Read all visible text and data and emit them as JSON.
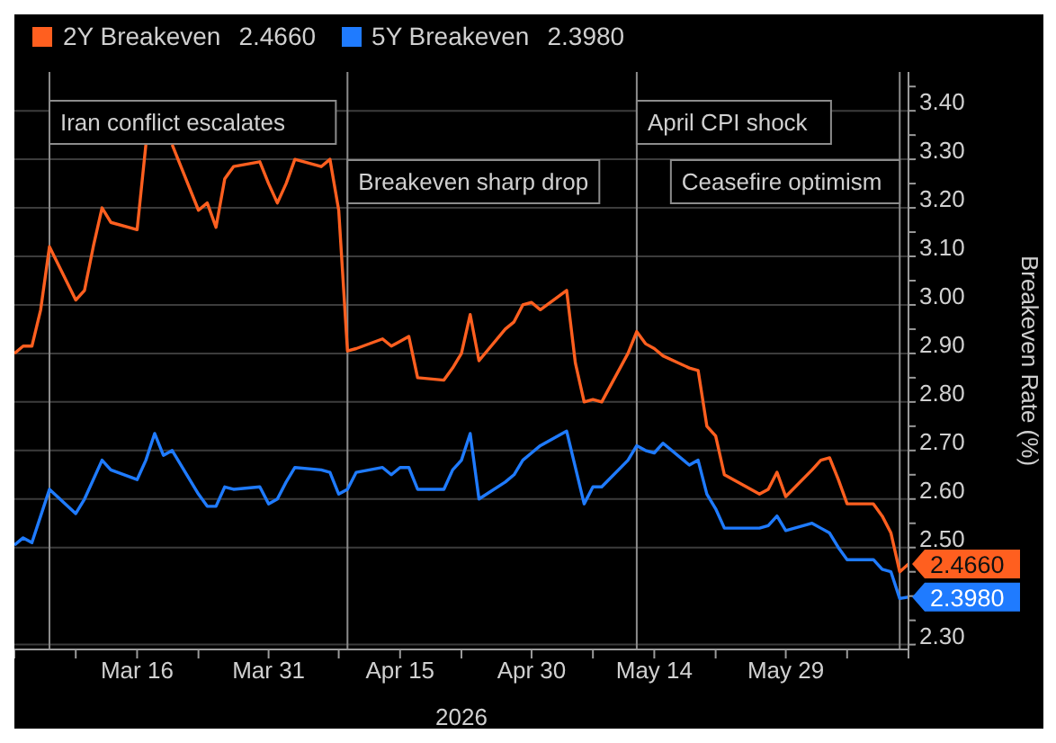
{
  "chart_data": {
    "type": "line",
    "ylabel": "Breakeven Rate (%)",
    "xlabel": "2026",
    "legend": "top left",
    "grid": "y",
    "x": [
      "2026-03-02",
      "2026-03-03",
      "2026-03-04",
      "2026-03-05",
      "2026-03-06",
      "2026-03-09",
      "2026-03-10",
      "2026-03-11",
      "2026-03-12",
      "2026-03-13",
      "2026-03-16",
      "2026-03-17",
      "2026-03-18",
      "2026-03-19",
      "2026-03-20",
      "2026-03-23",
      "2026-03-24",
      "2026-03-25",
      "2026-03-26",
      "2026-03-27",
      "2026-03-30",
      "2026-03-31",
      "2026-04-01",
      "2026-04-02",
      "2026-04-03",
      "2026-04-06",
      "2026-04-07",
      "2026-04-08",
      "2026-04-09",
      "2026-04-10",
      "2026-04-13",
      "2026-04-14",
      "2026-04-15",
      "2026-04-16",
      "2026-04-17",
      "2026-04-20",
      "2026-04-21",
      "2026-04-22",
      "2026-04-23",
      "2026-04-24",
      "2026-04-27",
      "2026-04-28",
      "2026-04-29",
      "2026-04-30",
      "2026-05-01",
      "2026-05-04",
      "2026-05-05",
      "2026-05-06",
      "2026-05-07",
      "2026-05-08",
      "2026-05-11",
      "2026-05-12",
      "2026-05-13",
      "2026-05-14",
      "2026-05-15",
      "2026-05-18",
      "2026-05-19",
      "2026-05-20",
      "2026-05-21",
      "2026-05-22",
      "2026-05-26",
      "2026-05-27",
      "2026-05-28",
      "2026-05-29",
      "2026-06-01",
      "2026-06-02",
      "2026-06-03",
      "2026-06-04",
      "2026-06-05",
      "2026-06-08",
      "2026-06-09",
      "2026-06-10",
      "2026-06-11",
      "2026-06-12"
    ],
    "xlim": [
      "2026-03-02",
      "2026-06-12"
    ],
    "xticks": [
      {
        "value": "2026-03-02",
        "label": null
      },
      {
        "value": "2026-03-09",
        "label": null
      },
      {
        "value": "2026-03-16",
        "label": "Mar 16"
      },
      {
        "value": "2026-03-23",
        "label": null
      },
      {
        "value": "2026-03-31",
        "label": "Mar 31"
      },
      {
        "value": "2026-04-08",
        "label": null
      },
      {
        "value": "2026-04-15",
        "label": "Apr 15"
      },
      {
        "value": "2026-04-22",
        "label": null
      },
      {
        "value": "2026-04-30",
        "label": "Apr 30"
      },
      {
        "value": "2026-05-07",
        "label": null
      },
      {
        "value": "2026-05-14",
        "label": "May 14"
      },
      {
        "value": "2026-05-21",
        "label": null
      },
      {
        "value": "2026-05-29",
        "label": "May 29"
      },
      {
        "value": "2026-06-05",
        "label": null
      },
      {
        "value": "2026-06-12",
        "label": null
      }
    ],
    "ylim": [
      2.29,
      3.48
    ],
    "yticks": [
      {
        "value": 2.3,
        "label": "2.30"
      },
      {
        "value": 2.35,
        "label": null
      },
      {
        "value": 2.4,
        "label": null
      },
      {
        "value": 2.45,
        "label": null
      },
      {
        "value": 2.5,
        "label": "2.50"
      },
      {
        "value": 2.55,
        "label": null
      },
      {
        "value": 2.6,
        "label": "2.60"
      },
      {
        "value": 2.65,
        "label": null
      },
      {
        "value": 2.7,
        "label": "2.70"
      },
      {
        "value": 2.75,
        "label": null
      },
      {
        "value": 2.8,
        "label": "2.80"
      },
      {
        "value": 2.85,
        "label": null
      },
      {
        "value": 2.9,
        "label": "2.90"
      },
      {
        "value": 2.95,
        "label": null
      },
      {
        "value": 3.0,
        "label": "3.00"
      },
      {
        "value": 3.05,
        "label": null
      },
      {
        "value": 3.1,
        "label": "3.10"
      },
      {
        "value": 3.15,
        "label": null
      },
      {
        "value": 3.2,
        "label": "3.20"
      },
      {
        "value": 3.25,
        "label": null
      },
      {
        "value": 3.3,
        "label": "3.30"
      },
      {
        "value": 3.35,
        "label": null
      },
      {
        "value": 3.4,
        "label": "3.40"
      },
      {
        "value": 3.45,
        "label": null
      }
    ],
    "ref_lines": [
      {
        "axis": "x",
        "value": "2026-03-06",
        "label": "Iran conflict escalates"
      },
      {
        "axis": "x",
        "value": "2026-04-09",
        "label": "Breakeven sharp drop"
      },
      {
        "axis": "x",
        "value": "2026-05-12",
        "label": "April CPI shock"
      },
      {
        "axis": "x",
        "value": "2026-06-11",
        "label": "Ceasefire optimism"
      }
    ],
    "series": [
      {
        "name": "2Y Breakeven",
        "color": "#ff5f1f",
        "values": [
          2.9,
          2.915,
          2.915,
          2.99,
          3.12,
          3.01,
          3.03,
          3.12,
          3.2,
          3.17,
          3.155,
          3.33,
          null,
          null,
          3.33,
          3.195,
          3.21,
          3.16,
          3.26,
          3.285,
          3.295,
          3.25,
          3.21,
          3.25,
          3.3,
          3.285,
          3.3,
          3.195,
          2.905,
          2.91,
          2.93,
          2.915,
          2.925,
          2.935,
          2.85,
          2.845,
          2.87,
          2.9,
          2.98,
          2.885,
          2.95,
          2.965,
          3.0,
          3.005,
          2.99,
          3.03,
          2.88,
          2.8,
          2.805,
          2.8,
          2.9,
          2.945,
          2.92,
          2.91,
          2.895,
          2.87,
          2.865,
          2.75,
          2.73,
          2.65,
          2.61,
          2.62,
          2.655,
          2.605,
          2.66,
          2.68,
          2.685,
          2.64,
          2.59,
          2.59,
          2.565,
          2.53,
          2.45,
          2.466
        ],
        "value_labels": [
          null,
          null,
          null,
          null,
          null,
          null,
          null,
          null,
          null,
          null,
          null,
          null,
          null,
          null,
          null,
          null,
          null,
          null,
          null,
          null,
          null,
          null,
          null,
          null,
          null,
          null,
          null,
          null,
          null,
          null,
          null,
          null,
          null,
          null,
          null,
          null,
          null,
          null,
          null,
          null,
          null,
          null,
          null,
          null,
          null,
          null,
          null,
          null,
          null,
          null,
          null,
          null,
          null,
          null,
          null,
          null,
          null,
          null,
          null,
          null,
          null,
          null,
          null,
          null,
          null,
          null,
          null,
          null,
          null,
          null,
          null,
          null,
          null,
          "2.4660"
        ]
      },
      {
        "name": "5Y Breakeven",
        "color": "#1f7bff",
        "values": [
          2.505,
          2.52,
          2.51,
          2.565,
          2.62,
          2.57,
          2.6,
          2.64,
          2.68,
          2.66,
          2.64,
          2.68,
          2.735,
          2.69,
          2.7,
          2.61,
          2.585,
          2.585,
          2.625,
          2.62,
          2.625,
          2.59,
          2.6,
          2.635,
          2.665,
          2.66,
          2.655,
          2.61,
          2.62,
          2.655,
          2.665,
          2.65,
          2.665,
          2.665,
          2.62,
          2.62,
          2.66,
          2.68,
          2.735,
          2.6,
          2.635,
          2.65,
          2.68,
          2.695,
          2.71,
          2.74,
          2.665,
          2.59,
          2.625,
          2.625,
          2.68,
          2.71,
          2.7,
          2.695,
          2.715,
          2.67,
          2.68,
          2.61,
          2.58,
          2.54,
          2.54,
          2.545,
          2.565,
          2.535,
          2.55,
          2.54,
          2.53,
          2.5,
          2.475,
          2.475,
          2.455,
          2.45,
          2.395,
          2.398
        ],
        "value_labels": [
          null,
          null,
          null,
          null,
          null,
          null,
          null,
          null,
          null,
          null,
          null,
          null,
          null,
          null,
          null,
          null,
          null,
          null,
          null,
          null,
          null,
          null,
          null,
          null,
          null,
          null,
          null,
          null,
          null,
          null,
          null,
          null,
          null,
          null,
          null,
          null,
          null,
          null,
          null,
          null,
          null,
          null,
          null,
          null,
          null,
          null,
          null,
          null,
          null,
          null,
          null,
          null,
          null,
          null,
          null,
          null,
          null,
          null,
          null,
          null,
          null,
          null,
          null,
          null,
          null,
          null,
          null,
          null,
          null,
          null,
          null,
          null,
          null,
          "2.3980"
        ]
      }
    ]
  }
}
